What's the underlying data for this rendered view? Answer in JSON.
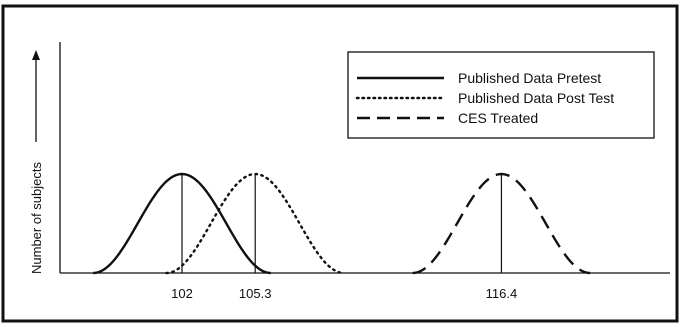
{
  "chart_data": {
    "type": "line",
    "ylabel": "Number of subjects",
    "xticks": [
      {
        "value": 102,
        "label": "102"
      },
      {
        "value": 105.3,
        "label": "105.3"
      },
      {
        "value": 116.4,
        "label": "116.4"
      }
    ],
    "series": [
      {
        "name": "Published Data Pretest",
        "style": "solid",
        "mean": 102,
        "halfwidth": 4
      },
      {
        "name": "Published Data Post Test",
        "style": "dotted",
        "mean": 105.3,
        "halfwidth": 4
      },
      {
        "name": "CES Treated",
        "style": "dashed",
        "mean": 116.4,
        "halfwidth": 4
      }
    ],
    "xlim": [
      96.5,
      124
    ],
    "grid": false,
    "legend": "top-right",
    "colors": {
      "ink": "#111111",
      "background": "#ffffff"
    }
  }
}
